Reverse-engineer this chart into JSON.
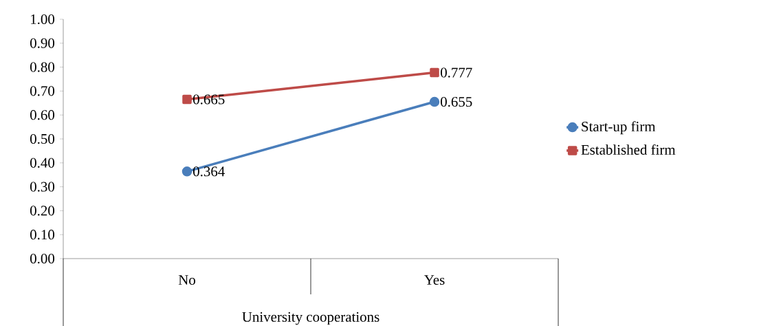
{
  "chart_data": {
    "type": "line",
    "xlabel": "University cooperations",
    "categories": [
      "No",
      "Yes"
    ],
    "series": [
      {
        "name": "Start-up firm",
        "color": "#4a7ebb",
        "marker": "circle",
        "values": [
          0.364,
          0.655
        ]
      },
      {
        "name": "Established firm",
        "color": "#be4b48",
        "marker": "square",
        "values": [
          0.665,
          0.777
        ]
      }
    ],
    "ylim": [
      0,
      1.0
    ],
    "yticks": [
      {
        "value": 0,
        "label": "0.00"
      },
      {
        "value": 0.1,
        "label": "0.10"
      },
      {
        "value": 0.2,
        "label": "0.20"
      },
      {
        "value": 0.3,
        "label": "0.30"
      },
      {
        "value": 0.4,
        "label": "0.40"
      },
      {
        "value": 0.5,
        "label": "0.50"
      },
      {
        "value": 0.6,
        "label": "0.60"
      },
      {
        "value": 0.7,
        "label": "0.70"
      },
      {
        "value": 0.8,
        "label": "0.80"
      },
      {
        "value": 0.9,
        "label": "0.90"
      },
      {
        "value": 1.0,
        "label": "1.00"
      }
    ],
    "data_labels": true,
    "legend": "right",
    "grid": false,
    "line_style": "solid"
  }
}
